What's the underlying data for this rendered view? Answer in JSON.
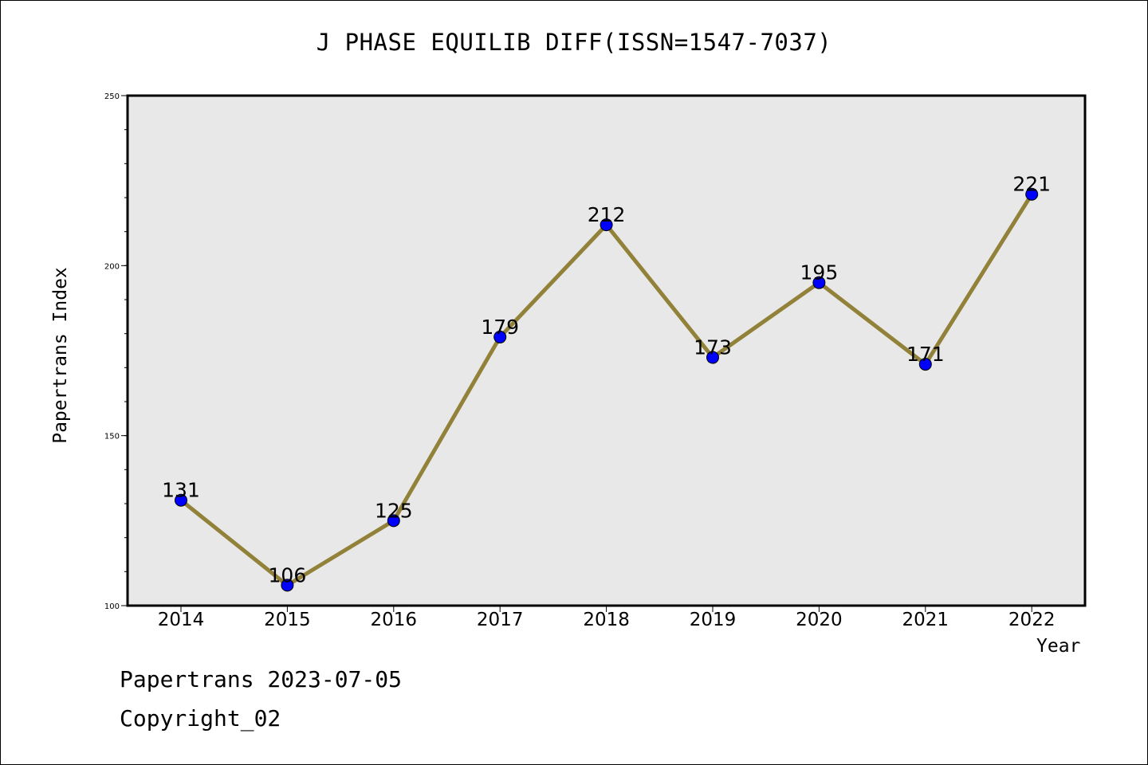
{
  "header": {
    "title": "J PHASE EQUILIB DIFF(ISSN=1547-7037)"
  },
  "footer": {
    "date": "Papertrans 2023-07-05",
    "copyright": "Copyright_02"
  },
  "colors": {
    "plot_bg": "#e8e8e8",
    "line": "#918139",
    "marker": "#0000ff",
    "axis": "#000000"
  },
  "chart_data": {
    "type": "line",
    "title": "J PHASE EQUILIB DIFF(ISSN=1547-7037)",
    "xlabel": "Year",
    "ylabel": "Papertrans Index",
    "categories": [
      "2014",
      "2015",
      "2016",
      "2017",
      "2018",
      "2019",
      "2020",
      "2021",
      "2022"
    ],
    "values": [
      131,
      106,
      125,
      179,
      212,
      173,
      195,
      171,
      221
    ],
    "data_labels": [
      "131",
      "106",
      "125",
      "179",
      "212",
      "173",
      "195",
      "171",
      "221"
    ],
    "ylim": [
      100,
      250
    ],
    "yticks": [
      100,
      150,
      200,
      250
    ],
    "ytick_labels": [
      "100",
      "150",
      "200",
      "250"
    ],
    "y_minor_step": 10,
    "grid": false,
    "legend": "none"
  }
}
